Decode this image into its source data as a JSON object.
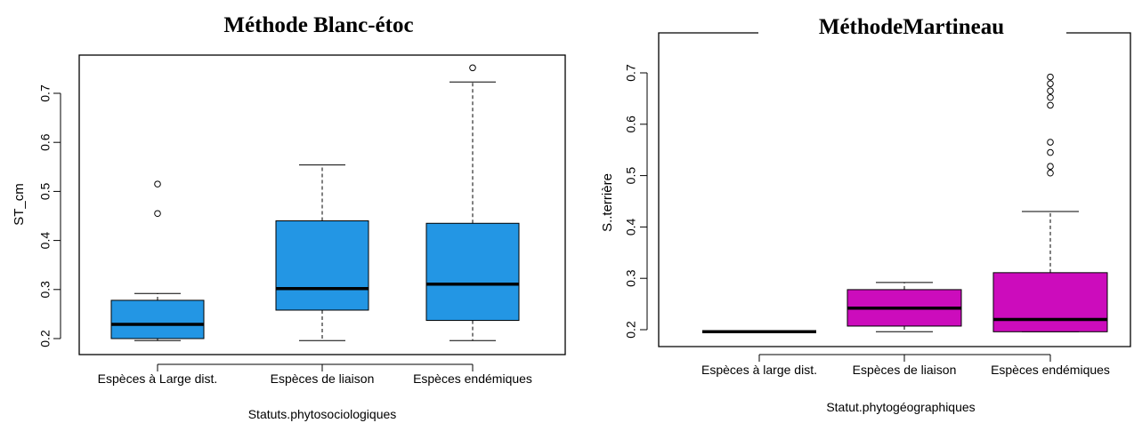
{
  "chart_data": [
    {
      "type": "boxplot",
      "title": "Méthode Blanc-étoc",
      "xlabel": "Statuts.phytosociologiques",
      "ylabel": "ST_cm",
      "ylim": [
        0.19,
        0.76
      ],
      "yticks": [
        0.2,
        0.3,
        0.4,
        0.5,
        0.6,
        0.7
      ],
      "ytick_labels": [
        "0.2",
        "0.3",
        "0.4",
        "0.5",
        "0.6",
        "0.7"
      ],
      "box_color": "#2396e4",
      "categories": [
        "Espèces à Large dist.",
        "Espèces de liaison",
        "Espèces endémiques"
      ],
      "boxes": [
        {
          "whisker_low": 0.196,
          "q1": 0.2,
          "median": 0.229,
          "q3": 0.278,
          "whisker_high": 0.292,
          "outliers": [
            0.455,
            0.515
          ]
        },
        {
          "whisker_low": 0.196,
          "q1": 0.258,
          "median": 0.302,
          "q3": 0.44,
          "whisker_high": 0.554,
          "outliers": []
        },
        {
          "whisker_low": 0.196,
          "q1": 0.237,
          "median": 0.311,
          "q3": 0.435,
          "whisker_high": 0.723,
          "outliers": [
            0.752
          ]
        }
      ]
    },
    {
      "type": "boxplot",
      "title": "MéthodeMartineau",
      "xlabel": "Statut.phytogéographiques",
      "ylabel": "S..terrière",
      "ylim": [
        0.18,
        0.74
      ],
      "yticks": [
        0.2,
        0.3,
        0.4,
        0.5,
        0.6,
        0.7
      ],
      "ytick_labels": [
        "0.2",
        "0.3",
        "0.4",
        "0.5",
        "0.6",
        "0.7"
      ],
      "box_color": "#cc0cbc",
      "categories": [
        "Espèces à large dist.",
        "Espèces de liaison",
        "Espèces endémiques"
      ],
      "boxes": [
        {
          "whisker_low": 0.196,
          "q1": 0.196,
          "median": 0.196,
          "q3": 0.196,
          "whisker_high": 0.196,
          "outliers": []
        },
        {
          "whisker_low": 0.196,
          "q1": 0.207,
          "median": 0.242,
          "q3": 0.278,
          "whisker_high": 0.292,
          "outliers": []
        },
        {
          "whisker_low": 0.196,
          "q1": 0.196,
          "median": 0.22,
          "q3": 0.311,
          "whisker_high": 0.43,
          "outliers": [
            0.505,
            0.518,
            0.545,
            0.565,
            0.637,
            0.652,
            0.665,
            0.679,
            0.692
          ]
        }
      ]
    }
  ]
}
